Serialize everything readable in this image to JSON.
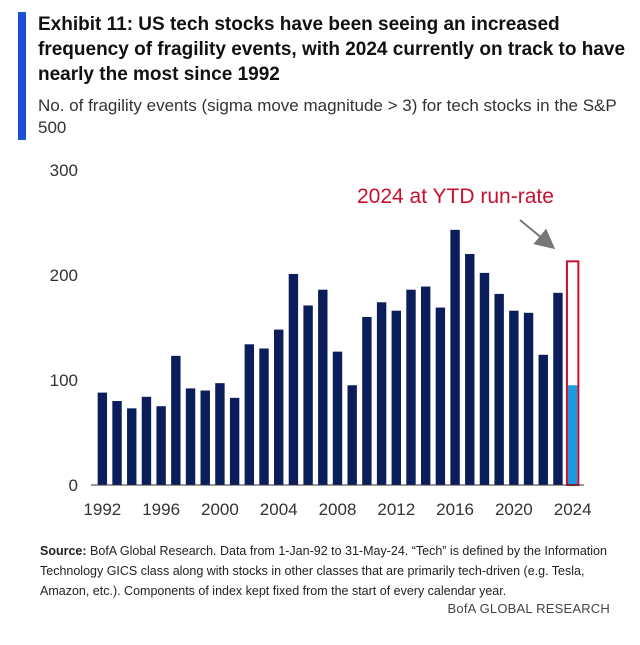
{
  "header": {
    "title": "Exhibit 11: US tech stocks have been seeing an increased frequency of fragility events, with 2024 currently on track to have nearly the most since 1992",
    "subtitle": "No. of fragility events (sigma move magnitude > 3) for tech stocks in the S&P 500"
  },
  "chart_data": {
    "type": "bar",
    "title": "",
    "xlabel": "",
    "ylabel": "",
    "ylim": [
      0,
      300
    ],
    "yticks": [
      0,
      100,
      200,
      300
    ],
    "xticks": [
      "1992",
      "1996",
      "2000",
      "2004",
      "2008",
      "2012",
      "2016",
      "2020",
      "2024"
    ],
    "categories": [
      "1992",
      "1993",
      "1994",
      "1995",
      "1996",
      "1997",
      "1998",
      "1999",
      "2000",
      "2001",
      "2002",
      "2003",
      "2004",
      "2005",
      "2006",
      "2007",
      "2008",
      "2009",
      "2010",
      "2011",
      "2012",
      "2013",
      "2014",
      "2015",
      "2016",
      "2017",
      "2018",
      "2019",
      "2020",
      "2021",
      "2022",
      "2023",
      "2024"
    ],
    "values": [
      88,
      80,
      73,
      84,
      75,
      123,
      92,
      90,
      97,
      83,
      134,
      130,
      148,
      201,
      171,
      186,
      127,
      95,
      160,
      174,
      166,
      186,
      189,
      169,
      243,
      220,
      202,
      182,
      166,
      164,
      124,
      183,
      95
    ],
    "run_rate_2024": 213,
    "annotation": "2024 at YTD run-rate",
    "grid": false,
    "colors": {
      "bar": "#0b1e5b",
      "current_year": "#1e9be0",
      "run_rate_outline": "#c8102e",
      "arrow": "#777777"
    }
  },
  "footer": {
    "source_label": "Source:",
    "source_text": "BofA Global Research. Data from 1-Jan-92 to 31-May-24. “Tech” is defined by the Information Technology GICS class along with stocks in other classes that are primarily tech-driven (e.g. Tesla, Amazon, etc.). Components of index kept fixed from the start of every calendar year.",
    "brand": "BofA GLOBAL RESEARCH"
  },
  "accent_color": "#1a4fd6"
}
